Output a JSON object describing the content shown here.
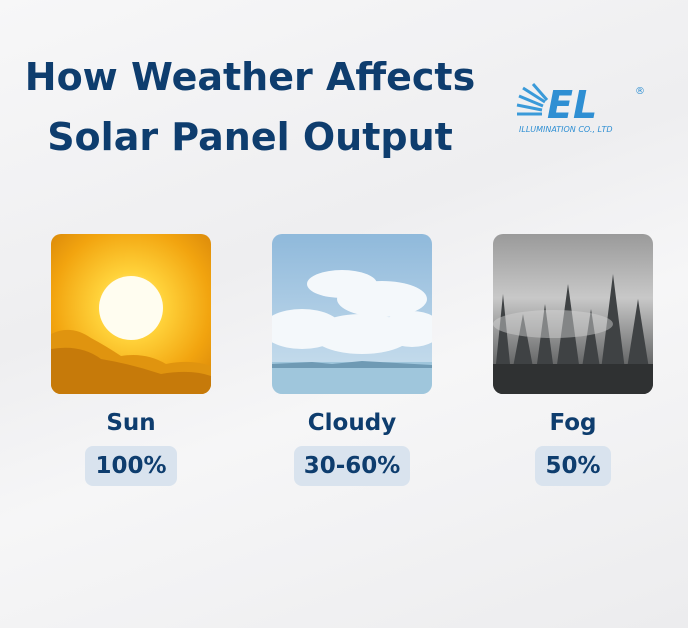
{
  "header": {
    "title_lines": [
      "How Weather Affects",
      "Solar Panel Output"
    ]
  },
  "logo": {
    "mark": "EL",
    "registered": "®",
    "company": "ILLUMINATION CO., LTD"
  },
  "cards": [
    {
      "label": "Sun",
      "output": "100%"
    },
    {
      "label": "Cloudy",
      "output": "30-60%"
    },
    {
      "label": "Fog",
      "output": "50%"
    }
  ]
}
